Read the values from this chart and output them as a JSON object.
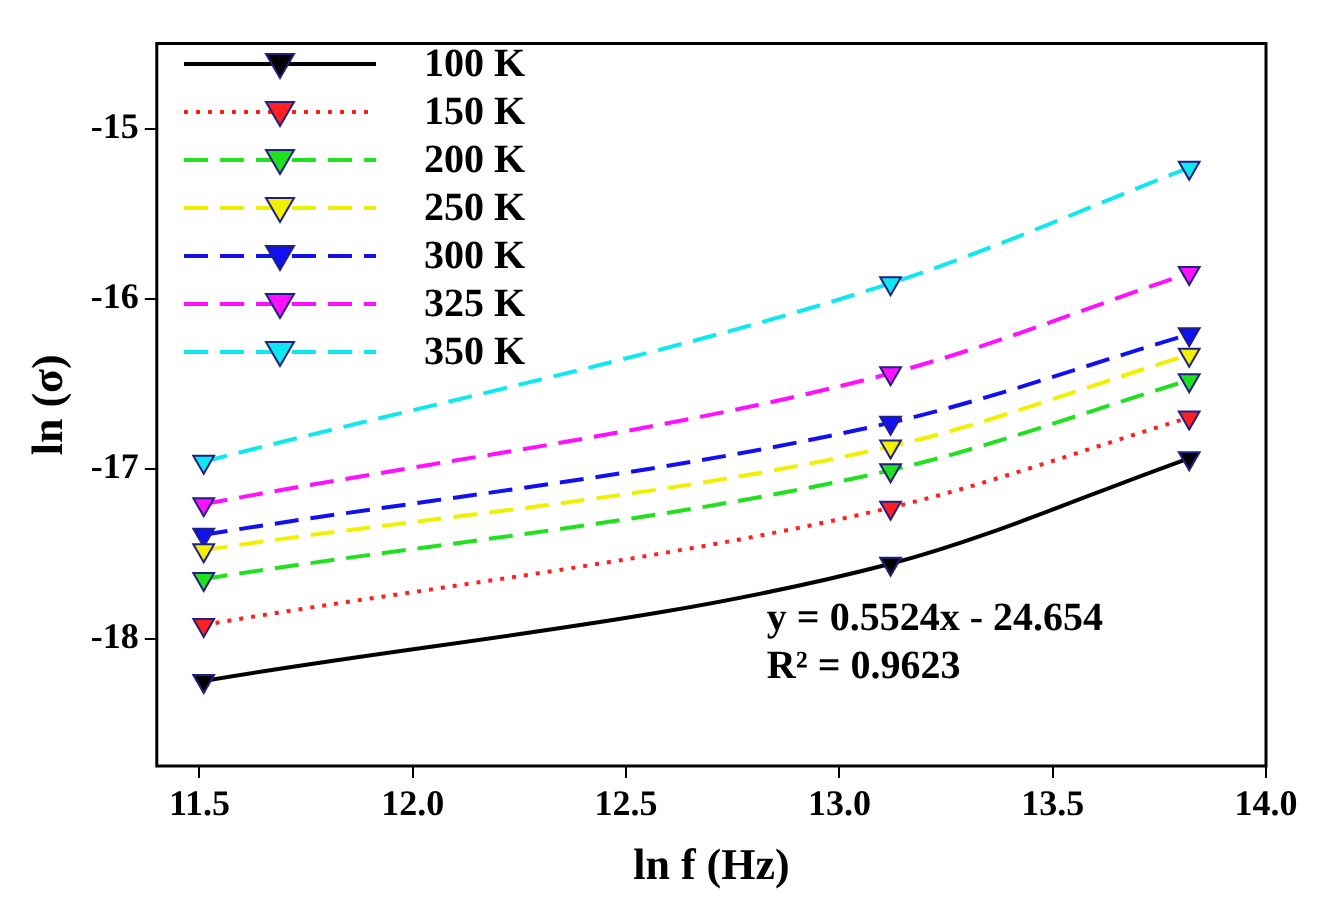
{
  "chart_data": {
    "type": "line",
    "xlabel": "ln f (Hz)",
    "ylabel": "ln (σ)",
    "xlim": [
      11.4,
      14.0
    ],
    "xticks": [
      11.5,
      {
        "value": 12,
        "label": "12.0"
      },
      12.5,
      {
        "value": 13,
        "label": "13.0"
      },
      13.5,
      {
        "value": 14,
        "label": "14.0"
      }
    ],
    "ylim": [
      -18.75,
      -14.5
    ],
    "yticks": [
      -18,
      -17,
      -16,
      -15
    ],
    "x": [
      11.51,
      13.12,
      13.82
    ],
    "series": [
      {
        "name": "100 K",
        "color": "#000000",
        "line_style": "solid",
        "values": [
          -18.25,
          -17.56,
          -16.94
        ]
      },
      {
        "name": "150 K",
        "color": "#ff2020",
        "line_style": "dotted",
        "values": [
          -17.92,
          -17.23,
          -16.7
        ]
      },
      {
        "name": "200 K",
        "color": "#20e020",
        "line_style": "dashed",
        "values": [
          -17.65,
          -17.01,
          -16.48
        ]
      },
      {
        "name": "250 K",
        "color": "#f0f000",
        "line_style": "dashed",
        "values": [
          -17.48,
          -16.87,
          -16.33
        ]
      },
      {
        "name": "300 K",
        "color": "#1010f0",
        "line_style": "dashed",
        "values": [
          -17.39,
          -16.73,
          -16.21
        ]
      },
      {
        "name": "325 K",
        "color": "#ff10ff",
        "line_style": "dashed",
        "values": [
          -17.21,
          -16.44,
          -15.85
        ]
      },
      {
        "name": "350 K",
        "color": "#10e8f0",
        "line_style": "dashed",
        "values": [
          -16.96,
          -15.91,
          -15.23
        ]
      }
    ],
    "marker": "triangle",
    "grid": false,
    "legend": "top left",
    "annotations": [
      "y = 0.5524x - 24.654",
      "R² = 0.9623"
    ]
  }
}
